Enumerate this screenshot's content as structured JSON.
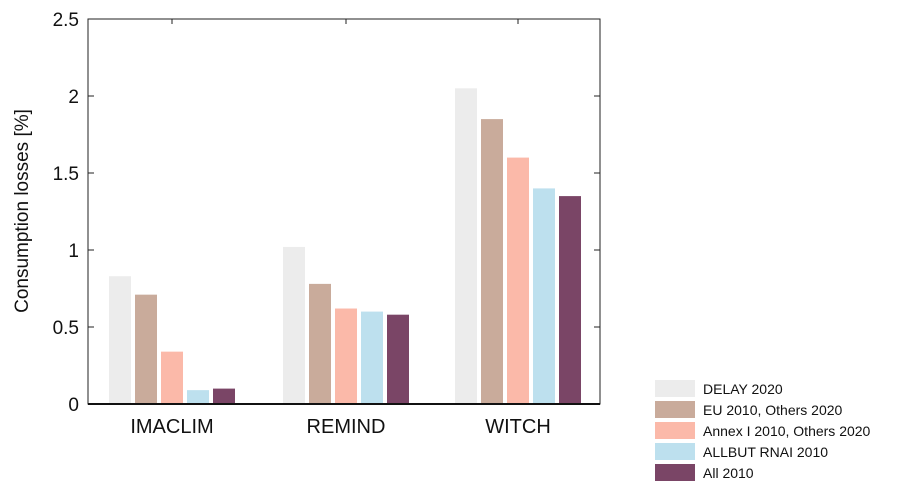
{
  "chart_data": {
    "type": "bar",
    "categories": [
      "IMACLIM",
      "REMIND",
      "WITCH"
    ],
    "series": [
      {
        "name": "DELAY 2020",
        "color": "#ececec",
        "values": [
          0.83,
          1.02,
          2.05
        ]
      },
      {
        "name": "EU 2010, Others 2020",
        "color": "#c9ab9b",
        "values": [
          0.71,
          0.78,
          1.85
        ]
      },
      {
        "name": "Annex I 2010, Others 2020",
        "color": "#fbb9a9",
        "values": [
          0.34,
          0.62,
          1.6
        ]
      },
      {
        "name": "ALLBUT RNAI 2010",
        "color": "#bde0ee",
        "values": [
          0.09,
          0.6,
          1.4
        ]
      },
      {
        "name": "All 2010",
        "color": "#7a4566",
        "values": [
          0.1,
          0.58,
          1.35
        ]
      }
    ],
    "ylabel": "Consumption losses [%]",
    "ylim": [
      0,
      2.5
    ],
    "yticks": [
      0,
      0.5,
      1,
      1.5,
      2,
      2.5
    ],
    "ytick_labels": [
      "0",
      "0.5",
      "1",
      "1.5",
      "2",
      "2.5"
    ],
    "grid": false,
    "legend_position": "bottom-right, outside plot"
  }
}
